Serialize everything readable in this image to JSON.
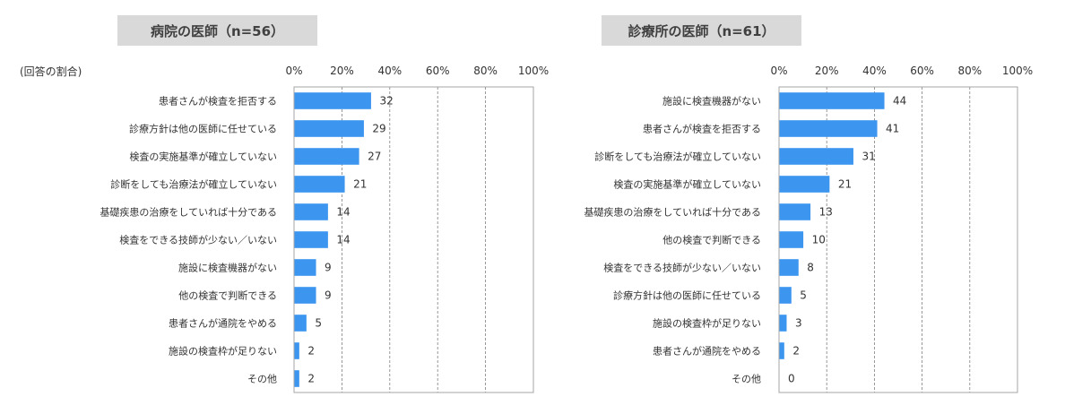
{
  "colors": {
    "bar": "#3c96f0",
    "title_bg": "#d9d9d9",
    "frame": "#a6a6a6",
    "grid": "#7f7f7f"
  },
  "ratio_label": "(回答の割合)",
  "chart_data": [
    {
      "type": "bar",
      "orientation": "horizontal",
      "title": "病院の医師（n=56）",
      "xlim": [
        0,
        100
      ],
      "tick_labels": [
        "0%",
        "20%",
        "40%",
        "60%",
        "80%",
        "100%"
      ],
      "grid": "dashed vertical",
      "categories": [
        "患者さんが検査を拒否する",
        "診療方針は他の医師に任せている",
        "検査の実施基準が確立していない",
        "診断をしても治療法が確立していない",
        "基礎疾患の治療をしていれば十分である",
        "検査をできる技師が少ない／いない",
        "施設に検査機器がない",
        "他の検査で判断できる",
        "患者さんが通院をやめる",
        "施設の検査枠が足りない",
        "その他"
      ],
      "values": [
        32,
        29,
        27,
        21,
        14,
        14,
        9,
        9,
        5,
        2,
        2
      ]
    },
    {
      "type": "bar",
      "orientation": "horizontal",
      "title": "診療所の医師（n=61）",
      "xlim": [
        0,
        100
      ],
      "tick_labels": [
        "0%",
        "20%",
        "40%",
        "60%",
        "80%",
        "100%"
      ],
      "grid": "dashed vertical",
      "categories": [
        "施設に検査機器がない",
        "患者さんが検査を拒否する",
        "診断をしても治療法が確立していない",
        "検査の実施基準が確立していない",
        "基礎疾患の治療をしていれば十分である",
        "他の検査で判断できる",
        "検査をできる技師が少ない／いない",
        "診療方針は他の医師に任せている",
        "施設の検査枠が足りない",
        "患者さんが通院をやめる",
        "その他"
      ],
      "values": [
        44,
        41,
        31,
        21,
        13,
        10,
        8,
        5,
        3,
        2,
        0
      ]
    }
  ]
}
